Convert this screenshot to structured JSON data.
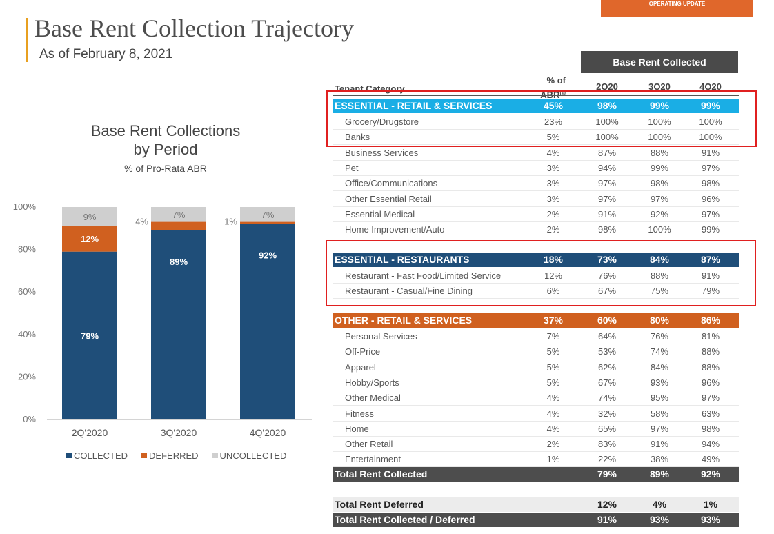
{
  "header": {
    "tag": "OPERATING UPDATE",
    "title": "Base Rent Collection Trajectory",
    "subtitle": "As of February 8, 2021"
  },
  "chart_data": {
    "type": "bar",
    "stacked": true,
    "title": "Base Rent Collections by Period",
    "title_line1": "Base Rent Collections",
    "title_line2": "by Period",
    "subtitle": "% of Pro-Rata ABR",
    "categories": [
      "2Q'2020",
      "3Q'2020",
      "4Q'2020"
    ],
    "ylim": [
      0,
      100
    ],
    "yticks": [
      "0%",
      "20%",
      "40%",
      "60%",
      "80%",
      "100%"
    ],
    "series": [
      {
        "name": "COLLECTED",
        "values": [
          79,
          89,
          92
        ],
        "labels": [
          "79%",
          "89%",
          "92%"
        ],
        "color": "#1f4e79"
      },
      {
        "name": "DEFERRED",
        "values": [
          12,
          4,
          1
        ],
        "labels": [
          "12%",
          "4%",
          "1%"
        ],
        "color": "#d0601f"
      },
      {
        "name": "UNCOLLECTED",
        "values": [
          9,
          7,
          7
        ],
        "labels": [
          "9%",
          "7%",
          "7%"
        ],
        "color": "#cfcfcf"
      }
    ],
    "legend": "bottom"
  },
  "table": {
    "group_header": "Base Rent Collected",
    "columns": [
      "Tenant Category",
      "% of ABR (1)",
      "2Q20",
      "3Q20",
      "4Q20"
    ],
    "col_abr_line1": "% of",
    "col_abr_line2": "ABR",
    "col_abr_note": "(1)",
    "essential_retail": {
      "label": "ESSENTIAL - RETAIL & SERVICES",
      "abr": "45%",
      "q2": "98%",
      "q3": "99%",
      "q4": "99%",
      "color": "#1aaee5",
      "rows": [
        {
          "name": "Grocery/Drugstore",
          "abr": "23%",
          "q2": "100%",
          "q3": "100%",
          "q4": "100%"
        },
        {
          "name": "Banks",
          "abr": "5%",
          "q2": "100%",
          "q3": "100%",
          "q4": "100%"
        },
        {
          "name": "Business Services",
          "abr": "4%",
          "q2": "87%",
          "q3": "88%",
          "q4": "91%"
        },
        {
          "name": "Pet",
          "abr": "3%",
          "q2": "94%",
          "q3": "99%",
          "q4": "97%"
        },
        {
          "name": "Office/Communications",
          "abr": "3%",
          "q2": "97%",
          "q3": "98%",
          "q4": "98%"
        },
        {
          "name": "Other Essential Retail",
          "abr": "3%",
          "q2": "97%",
          "q3": "97%",
          "q4": "96%"
        },
        {
          "name": "Essential Medical",
          "abr": "2%",
          "q2": "91%",
          "q3": "92%",
          "q4": "97%"
        },
        {
          "name": "Home Improvement/Auto",
          "abr": "2%",
          "q2": "98%",
          "q3": "100%",
          "q4": "99%"
        }
      ]
    },
    "essential_restaurants": {
      "label": "ESSENTIAL - RESTAURANTS",
      "abr": "18%",
      "q2": "73%",
      "q3": "84%",
      "q4": "87%",
      "color": "#1f4e79",
      "rows": [
        {
          "name": "Restaurant - Fast Food/Limited Service",
          "abr": "12%",
          "q2": "76%",
          "q3": "88%",
          "q4": "91%"
        },
        {
          "name": "Restaurant - Casual/Fine Dining",
          "abr": "6%",
          "q2": "67%",
          "q3": "75%",
          "q4": "79%"
        }
      ]
    },
    "other_retail": {
      "label": "OTHER - RETAIL & SERVICES",
      "abr": "37%",
      "q2": "60%",
      "q3": "80%",
      "q4": "86%",
      "color": "#d0601f",
      "rows": [
        {
          "name": "Personal Services",
          "abr": "7%",
          "q2": "64%",
          "q3": "76%",
          "q4": "81%"
        },
        {
          "name": "Off-Price",
          "abr": "5%",
          "q2": "53%",
          "q3": "74%",
          "q4": "88%"
        },
        {
          "name": "Apparel",
          "abr": "5%",
          "q2": "62%",
          "q3": "84%",
          "q4": "88%"
        },
        {
          "name": "Hobby/Sports",
          "abr": "5%",
          "q2": "67%",
          "q3": "93%",
          "q4": "96%"
        },
        {
          "name": "Other Medical",
          "abr": "4%",
          "q2": "74%",
          "q3": "95%",
          "q4": "97%"
        },
        {
          "name": "Fitness",
          "abr": "4%",
          "q2": "32%",
          "q3": "58%",
          "q4": "63%"
        },
        {
          "name": "Home",
          "abr": "4%",
          "q2": "65%",
          "q3": "97%",
          "q4": "98%"
        },
        {
          "name": "Other Retail",
          "abr": "2%",
          "q2": "83%",
          "q3": "91%",
          "q4": "94%"
        },
        {
          "name": "Entertainment",
          "abr": "1%",
          "q2": "22%",
          "q3": "38%",
          "q4": "49%"
        }
      ]
    },
    "total_collected": {
      "label": "Total Rent Collected",
      "q2": "79%",
      "q3": "89%",
      "q4": "92%"
    },
    "total_deferred": {
      "label": "Total Rent Deferred",
      "q2": "12%",
      "q3": "4%",
      "q4": "1%"
    },
    "total_collected_deferred": {
      "label": "Total Rent Collected / Deferred",
      "q2": "91%",
      "q3": "93%",
      "q4": "93%"
    }
  }
}
